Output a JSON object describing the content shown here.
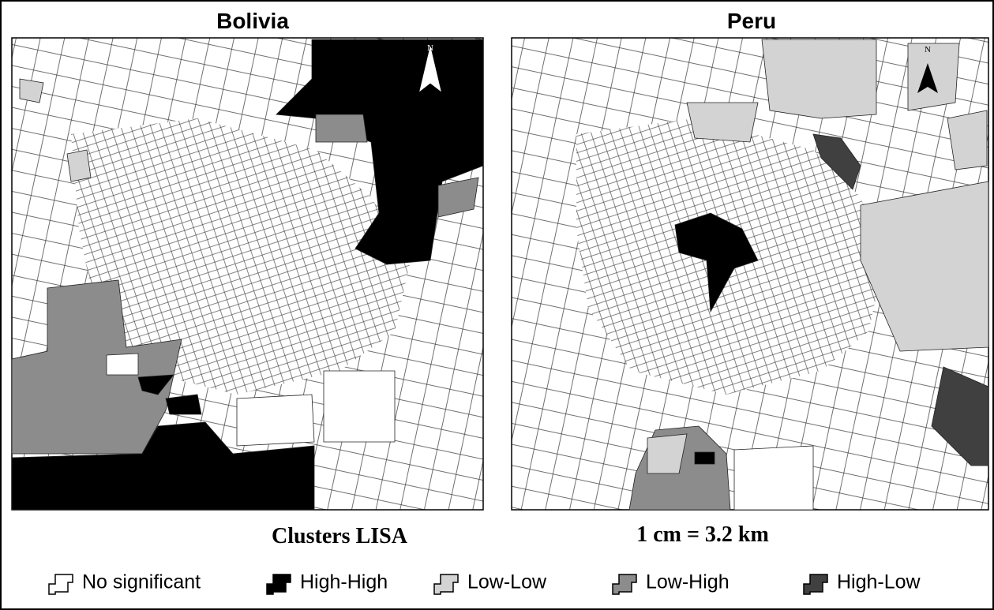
{
  "panels": [
    {
      "title": "Bolivia",
      "north": "N"
    },
    {
      "title": "Peru",
      "north": "N"
    }
  ],
  "caption": "Clusters LISA",
  "scale": "1 cm = 3.2 km",
  "legend": [
    {
      "label": "No significant",
      "color": "#ffffff"
    },
    {
      "label": "High-High",
      "color": "#000000"
    },
    {
      "label": "Low-Low",
      "color": "#d3d3d3"
    },
    {
      "label": "Low-High",
      "color": "#8c8c8c"
    },
    {
      "label": "High-Low",
      "color": "#404040"
    }
  ]
}
